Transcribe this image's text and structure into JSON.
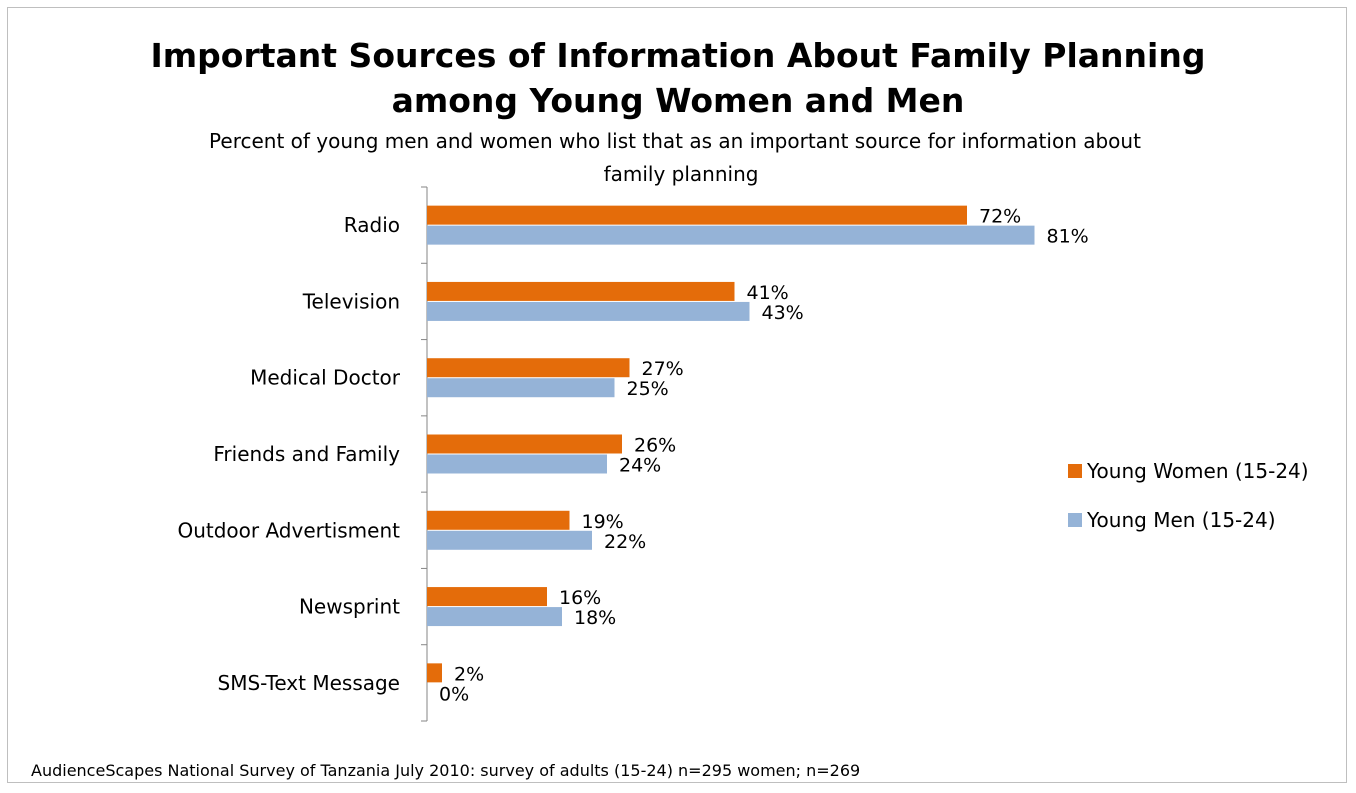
{
  "chart_data": {
    "type": "bar",
    "orientation": "horizontal",
    "title": "Important Sources of Information About Family Planning among Young Women and Men",
    "title_lines": [
      "Important Sources of Information About Family Planning",
      "among Young Women and Men"
    ],
    "subtitle_lines": [
      "Percent of young men and women who list that as an important source for information about",
      "family planning"
    ],
    "categories": [
      "Radio",
      "Television",
      "Medical Doctor",
      "Friends and Family",
      "Outdoor Advertisment",
      "Newsprint",
      "SMS-Text Message"
    ],
    "series": [
      {
        "name": "Young Women (15-24)",
        "color": "#E46C0A",
        "values": [
          72,
          41,
          27,
          26,
          19,
          16,
          2
        ],
        "labels": [
          "72%",
          "41%",
          "27%",
          "26%",
          "19%",
          "16%",
          "2%"
        ]
      },
      {
        "name": "Young Men (15-24)",
        "color": "#95B3D7",
        "values": [
          81,
          43,
          25,
          24,
          22,
          18,
          0
        ],
        "labels": [
          "81%",
          "43%",
          "25%",
          "24%",
          "22%",
          "18%",
          "0%"
        ]
      }
    ],
    "xlim": [
      0,
      100
    ],
    "grid": false,
    "legend_position": "right",
    "footer": "AudienceScapes National Survey of Tanzania July 2010: survey of adults (15-24) n=295 women; n=269"
  }
}
